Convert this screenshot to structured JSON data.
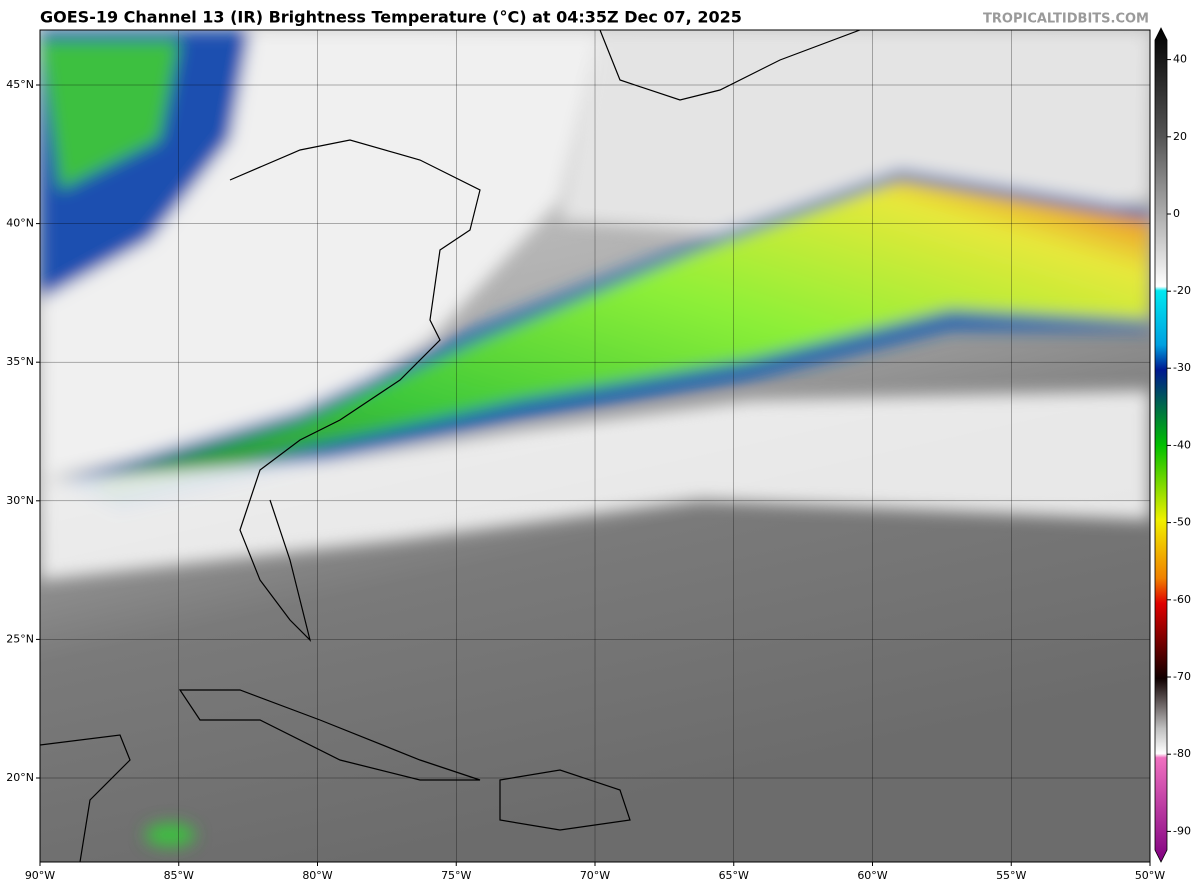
{
  "header": {
    "title": "GOES-19 Channel 13 (IR) Brightness Temperature (°C) at 04:35Z Dec 07, 2025",
    "watermark": "TROPICALTIDBITS.COM"
  },
  "map": {
    "latitude_labels": [
      "45°N",
      "40°N",
      "35°N",
      "30°N",
      "25°N",
      "20°N"
    ],
    "longitude_labels": [
      "90°W",
      "85°W",
      "80°W",
      "75°W",
      "70°W",
      "65°W",
      "60°W",
      "55°W",
      "50°W"
    ]
  },
  "colorbar": {
    "ticks": [
      40,
      20,
      0,
      -20,
      -30,
      -40,
      -50,
      -60,
      -70,
      -80,
      -90
    ]
  }
}
